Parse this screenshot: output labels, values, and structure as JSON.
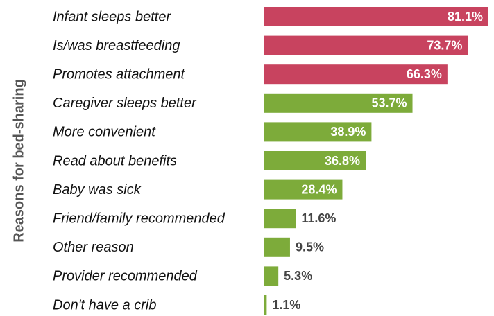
{
  "chart_data": {
    "type": "bar",
    "orientation": "horizontal",
    "y_label": "Reasons for bed-sharing",
    "categories": [
      "Infant sleeps better",
      "Is/was breastfeeding",
      "Promotes attachment",
      "Caregiver sleeps better",
      "More convenient",
      "Read about benefits",
      "Baby was sick",
      "Friend/family recommended",
      "Other reason",
      "Provider recommended",
      "Don't have a crib"
    ],
    "values": [
      81.1,
      73.7,
      66.3,
      53.7,
      38.9,
      36.8,
      28.4,
      11.6,
      9.5,
      5.3,
      1.1
    ],
    "value_labels": [
      "81.1%",
      "73.7%",
      "66.3%",
      "53.7%",
      "38.9%",
      "36.8%",
      "28.4%",
      "11.6%",
      "9.5%",
      "5.3%",
      "1.1%"
    ],
    "colors": [
      "#c8435f",
      "#c8435f",
      "#c8435f",
      "#7dab3a",
      "#7dab3a",
      "#7dab3a",
      "#7dab3a",
      "#7dab3a",
      "#7dab3a",
      "#7dab3a",
      "#7dab3a"
    ]
  }
}
